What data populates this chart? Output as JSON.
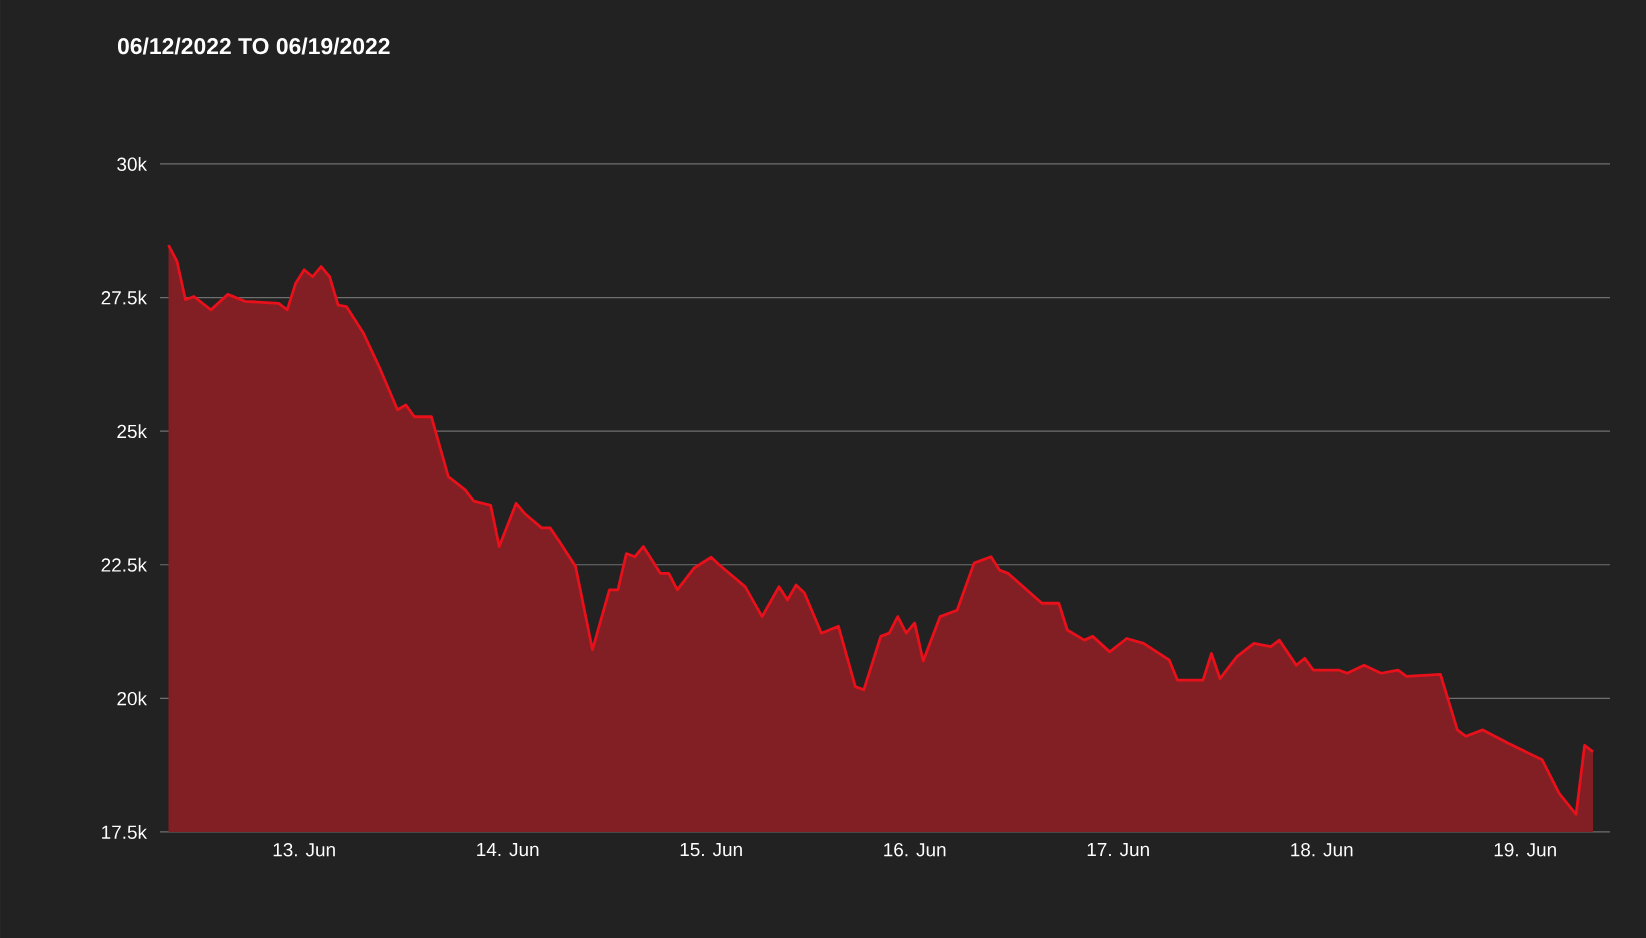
{
  "chart_data": {
    "type": "area",
    "title": "06/12/2022 TO 06/19/2022",
    "x": [
      "2022-06-12T08:00",
      "2022-06-12T09:00",
      "2022-06-12T10:00",
      "2022-06-12T11:00",
      "2022-06-12T13:00",
      "2022-06-12T15:00",
      "2022-06-12T17:00",
      "2022-06-12T21:00",
      "2022-06-12T22:00",
      "2022-06-12T23:00",
      "2022-06-13T00:00",
      "2022-06-13T01:00",
      "2022-06-13T02:00",
      "2022-06-13T03:00",
      "2022-06-13T04:00",
      "2022-06-13T05:00",
      "2022-06-13T07:00",
      "2022-06-13T09:00",
      "2022-06-13T11:00",
      "2022-06-13T12:00",
      "2022-06-13T13:00",
      "2022-06-13T15:00",
      "2022-06-13T17:00",
      "2022-06-13T19:00",
      "2022-06-13T20:00",
      "2022-06-13T22:00",
      "2022-06-13T23:00",
      "2022-06-14T01:00",
      "2022-06-14T02:00",
      "2022-06-14T04:00",
      "2022-06-14T05:00",
      "2022-06-14T06:00",
      "2022-06-14T08:00",
      "2022-06-14T10:00",
      "2022-06-14T12:00",
      "2022-06-14T13:00",
      "2022-06-14T14:00",
      "2022-06-14T15:00",
      "2022-06-14T16:00",
      "2022-06-14T18:00",
      "2022-06-14T19:00",
      "2022-06-14T20:00",
      "2022-06-14T22:00",
      "2022-06-15T00:00",
      "2022-06-15T01:00",
      "2022-06-15T04:00",
      "2022-06-15T06:00",
      "2022-06-15T08:00",
      "2022-06-15T09:00",
      "2022-06-15T10:00",
      "2022-06-15T11:00",
      "2022-06-15T13:00",
      "2022-06-15T15:00",
      "2022-06-15T17:00",
      "2022-06-15T18:00",
      "2022-06-15T20:00",
      "2022-06-15T21:00",
      "2022-06-15T22:00",
      "2022-06-15T23:00",
      "2022-06-16T00:00",
      "2022-06-16T01:00",
      "2022-06-16T03:00",
      "2022-06-16T05:00",
      "2022-06-16T07:00",
      "2022-06-16T09:00",
      "2022-06-16T10:00",
      "2022-06-16T11:00",
      "2022-06-16T15:00",
      "2022-06-16T17:00",
      "2022-06-16T18:00",
      "2022-06-16T20:00",
      "2022-06-16T21:00",
      "2022-06-16T23:00",
      "2022-06-17T01:00",
      "2022-06-17T03:00",
      "2022-06-17T06:00",
      "2022-06-17T07:00",
      "2022-06-17T10:00",
      "2022-06-17T11:00",
      "2022-06-17T12:00",
      "2022-06-17T14:00",
      "2022-06-17T16:00",
      "2022-06-17T18:00",
      "2022-06-17T19:00",
      "2022-06-17T21:00",
      "2022-06-17T22:00",
      "2022-06-17T23:00",
      "2022-06-18T02:00",
      "2022-06-18T03:00",
      "2022-06-18T05:00",
      "2022-06-18T07:00",
      "2022-06-18T09:00",
      "2022-06-18T10:00",
      "2022-06-18T14:00",
      "2022-06-18T16:00",
      "2022-06-18T17:00",
      "2022-06-18T19:00",
      "2022-06-18T22:00",
      "2022-06-19T02:00",
      "2022-06-19T04:00",
      "2022-06-19T06:00",
      "2022-06-19T07:00",
      "2022-06-19T08:00"
    ],
    "values": [
      28480,
      28180,
      27460,
      27520,
      27270,
      27560,
      27430,
      27390,
      27270,
      27770,
      28020,
      27890,
      28080,
      27890,
      27360,
      27330,
      26830,
      26150,
      25400,
      25490,
      25270,
      25270,
      24150,
      23900,
      23690,
      23610,
      22840,
      23650,
      23460,
      23190,
      23190,
      22960,
      22470,
      20910,
      22030,
      22030,
      22710,
      22650,
      22840,
      22340,
      22340,
      22030,
      22440,
      22640,
      22490,
      22090,
      21530,
      22090,
      21840,
      22120,
      21970,
      21220,
      21350,
      20220,
      20160,
      21160,
      21220,
      21530,
      21220,
      21410,
      20700,
      21530,
      21650,
      22530,
      22650,
      22400,
      22340,
      21780,
      21780,
      21280,
      21090,
      21160,
      20870,
      21120,
      21030,
      20720,
      20340,
      20340,
      20840,
      20370,
      20780,
      21030,
      20970,
      21090,
      20620,
      20750,
      20530,
      20530,
      20470,
      20620,
      20470,
      20530,
      20410,
      20450,
      19410,
      19290,
      19410,
      19160,
      18850,
      18220,
      17830,
      19120,
      19000
    ],
    "color": "#e8101a",
    "xlim": [
      "2022-06-12T07:00",
      "2022-06-19T10:00"
    ],
    "xticks": [
      {
        "value": "2022-06-13",
        "label": "13. Jun"
      },
      {
        "value": "2022-06-14",
        "label": "14. Jun"
      },
      {
        "value": "2022-06-15",
        "label": "15. Jun"
      },
      {
        "value": "2022-06-16",
        "label": "16. Jun"
      },
      {
        "value": "2022-06-17",
        "label": "17. Jun"
      },
      {
        "value": "2022-06-18",
        "label": "18. Jun"
      },
      {
        "value": "2022-06-19",
        "label": "19. Jun"
      }
    ],
    "ylim": [
      17500,
      30000
    ],
    "yticks": [
      {
        "value": 17500,
        "label": "17.5k"
      },
      {
        "value": 20000,
        "label": "20k"
      },
      {
        "value": 22500,
        "label": "22.5k"
      },
      {
        "value": 25000,
        "label": "25k"
      },
      {
        "value": 27500,
        "label": "27.5k"
      },
      {
        "value": 30000,
        "label": "30k"
      }
    ],
    "grid": "y"
  }
}
